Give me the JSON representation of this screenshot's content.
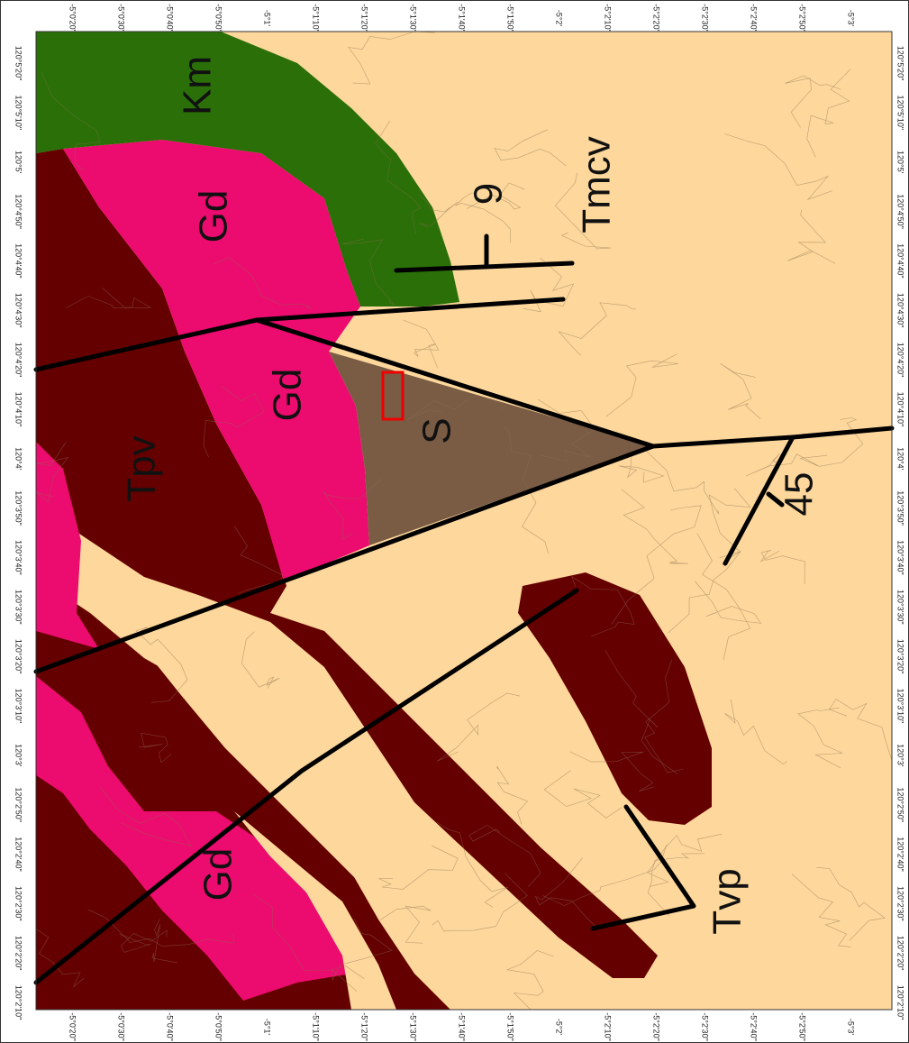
{
  "map": {
    "lat_labels": [
      "-5°0'20\"",
      "-5°0'30\"",
      "-5°0'40\"",
      "-5°0'50\"",
      "-5°1'",
      "-5°1'10\"",
      "-5°1'20\"",
      "-5°1'30\"",
      "-5°1'40\"",
      "-5°1'50\"",
      "-5°2'",
      "-5°2'10\"",
      "-5°2'20\"",
      "-5°2'30\"",
      "-5°2'40\"",
      "-5°2'50\"",
      "-5°3'"
    ],
    "lon_labels": [
      "120°5'20\"",
      "120°5'10\"",
      "120°5'",
      "120°4'50\"",
      "120°4'40\"",
      "120°4'30\"",
      "120°4'20\"",
      "120°4'10\"",
      "120°4'",
      "120°3'50\"",
      "120°3'40\"",
      "120°3'30\"",
      "120°3'20\"",
      "120°3'10\"",
      "120°3'",
      "120°2'50\"",
      "120°2'40\"",
      "120°2'30\"",
      "120°2'20\"",
      "120°2'10\""
    ],
    "units": [
      "Km",
      "Gd",
      "Gd",
      "Gd",
      "Tpv",
      "S",
      "Tmcv",
      "Tvp"
    ],
    "dips": [
      "9",
      "45"
    ]
  }
}
